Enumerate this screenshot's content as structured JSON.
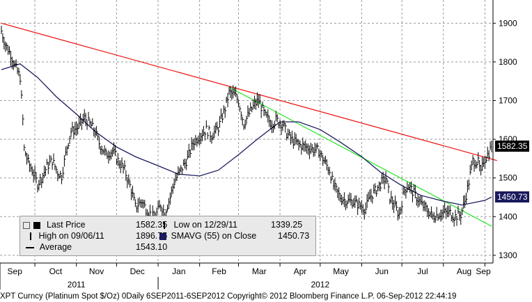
{
  "chart_data": {
    "type": "line",
    "title": "",
    "ylim": [
      1280,
      1960
    ],
    "y_ticks": [
      1300,
      1400,
      1500,
      1600,
      1700,
      1800,
      1900
    ],
    "x_ticks": [
      {
        "date": "2011-09-01",
        "label": "Sep"
      },
      {
        "date": "2011-10-01",
        "label": "Oct"
      },
      {
        "date": "2011-11-01",
        "label": "Nov"
      },
      {
        "date": "2011-12-01",
        "label": "Dec"
      },
      {
        "date": "2012-01-01",
        "label": "Jan"
      },
      {
        "date": "2012-02-01",
        "label": "Feb"
      },
      {
        "date": "2012-03-01",
        "label": "Mar"
      },
      {
        "date": "2012-04-01",
        "label": "Apr"
      },
      {
        "date": "2012-05-01",
        "label": "May"
      },
      {
        "date": "2012-06-01",
        "label": "Jun"
      },
      {
        "date": "2012-07-01",
        "label": "Jul"
      },
      {
        "date": "2012-08-01",
        "label": "Aug"
      },
      {
        "date": "2012-09-01",
        "label": "Sep"
      }
    ],
    "years": [
      {
        "label": "2011",
        "date": "2011-11-01"
      },
      {
        "label": "2012",
        "date": "2012-05-01"
      }
    ],
    "x_range": [
      "2011-09-06",
      "2012-09-06"
    ],
    "grid": true,
    "price_series": [
      {
        "x": "2011-09-06",
        "y": 1880
      },
      {
        "x": "2011-09-09",
        "y": 1845
      },
      {
        "x": "2011-09-13",
        "y": 1820
      },
      {
        "x": "2011-09-16",
        "y": 1790
      },
      {
        "x": "2011-09-20",
        "y": 1760
      },
      {
        "x": "2011-09-22",
        "y": 1650
      },
      {
        "x": "2011-09-23",
        "y": 1575
      },
      {
        "x": "2011-09-26",
        "y": 1540
      },
      {
        "x": "2011-09-29",
        "y": 1520
      },
      {
        "x": "2011-10-03",
        "y": 1485
      },
      {
        "x": "2011-10-06",
        "y": 1500
      },
      {
        "x": "2011-10-10",
        "y": 1530
      },
      {
        "x": "2011-10-14",
        "y": 1545
      },
      {
        "x": "2011-10-18",
        "y": 1515
      },
      {
        "x": "2011-10-21",
        "y": 1505
      },
      {
        "x": "2011-10-25",
        "y": 1580
      },
      {
        "x": "2011-10-28",
        "y": 1620
      },
      {
        "x": "2011-11-02",
        "y": 1630
      },
      {
        "x": "2011-11-07",
        "y": 1655
      },
      {
        "x": "2011-11-11",
        "y": 1640
      },
      {
        "x": "2011-11-15",
        "y": 1620
      },
      {
        "x": "2011-11-18",
        "y": 1590
      },
      {
        "x": "2011-11-23",
        "y": 1560
      },
      {
        "x": "2011-11-28",
        "y": 1570
      },
      {
        "x": "2011-12-02",
        "y": 1545
      },
      {
        "x": "2011-12-07",
        "y": 1520
      },
      {
        "x": "2011-12-12",
        "y": 1470
      },
      {
        "x": "2011-12-15",
        "y": 1425
      },
      {
        "x": "2011-12-20",
        "y": 1440
      },
      {
        "x": "2011-12-23",
        "y": 1420
      },
      {
        "x": "2011-12-29",
        "y": 1395
      },
      {
        "x": "2012-01-03",
        "y": 1430
      },
      {
        "x": "2012-01-06",
        "y": 1410
      },
      {
        "x": "2012-01-10",
        "y": 1450
      },
      {
        "x": "2012-01-13",
        "y": 1490
      },
      {
        "x": "2012-01-18",
        "y": 1520
      },
      {
        "x": "2012-01-23",
        "y": 1550
      },
      {
        "x": "2012-01-27",
        "y": 1590
      },
      {
        "x": "2012-02-01",
        "y": 1610
      },
      {
        "x": "2012-02-06",
        "y": 1625
      },
      {
        "x": "2012-02-10",
        "y": 1610
      },
      {
        "x": "2012-02-15",
        "y": 1630
      },
      {
        "x": "2012-02-20",
        "y": 1680
      },
      {
        "x": "2012-02-23",
        "y": 1720
      },
      {
        "x": "2012-02-27",
        "y": 1715
      },
      {
        "x": "2012-03-01",
        "y": 1700
      },
      {
        "x": "2012-03-05",
        "y": 1640
      },
      {
        "x": "2012-03-08",
        "y": 1660
      },
      {
        "x": "2012-03-13",
        "y": 1690
      },
      {
        "x": "2012-03-16",
        "y": 1700
      },
      {
        "x": "2012-03-21",
        "y": 1660
      },
      {
        "x": "2012-03-26",
        "y": 1640
      },
      {
        "x": "2012-03-29",
        "y": 1650
      },
      {
        "x": "2012-04-03",
        "y": 1640
      },
      {
        "x": "2012-04-06",
        "y": 1615
      },
      {
        "x": "2012-04-11",
        "y": 1595
      },
      {
        "x": "2012-04-16",
        "y": 1585
      },
      {
        "x": "2012-04-20",
        "y": 1580
      },
      {
        "x": "2012-04-25",
        "y": 1575
      },
      {
        "x": "2012-04-30",
        "y": 1570
      },
      {
        "x": "2012-05-03",
        "y": 1550
      },
      {
        "x": "2012-05-08",
        "y": 1520
      },
      {
        "x": "2012-05-11",
        "y": 1480
      },
      {
        "x": "2012-05-16",
        "y": 1450
      },
      {
        "x": "2012-05-21",
        "y": 1440
      },
      {
        "x": "2012-05-25",
        "y": 1440
      },
      {
        "x": "2012-05-30",
        "y": 1430
      },
      {
        "x": "2012-06-04",
        "y": 1420
      },
      {
        "x": "2012-06-07",
        "y": 1450
      },
      {
        "x": "2012-06-12",
        "y": 1470
      },
      {
        "x": "2012-06-15",
        "y": 1485
      },
      {
        "x": "2012-06-19",
        "y": 1500
      },
      {
        "x": "2012-06-22",
        "y": 1450
      },
      {
        "x": "2012-06-26",
        "y": 1425
      },
      {
        "x": "2012-06-29",
        "y": 1405
      },
      {
        "x": "2012-07-03",
        "y": 1470
      },
      {
        "x": "2012-07-06",
        "y": 1480
      },
      {
        "x": "2012-07-11",
        "y": 1455
      },
      {
        "x": "2012-07-16",
        "y": 1430
      },
      {
        "x": "2012-07-19",
        "y": 1420
      },
      {
        "x": "2012-07-24",
        "y": 1400
      },
      {
        "x": "2012-07-27",
        "y": 1405
      },
      {
        "x": "2012-08-01",
        "y": 1410
      },
      {
        "x": "2012-08-06",
        "y": 1410
      },
      {
        "x": "2012-08-09",
        "y": 1400
      },
      {
        "x": "2012-08-14",
        "y": 1405
      },
      {
        "x": "2012-08-17",
        "y": 1440
      },
      {
        "x": "2012-08-20",
        "y": 1490
      },
      {
        "x": "2012-08-23",
        "y": 1545
      },
      {
        "x": "2012-08-27",
        "y": 1540
      },
      {
        "x": "2012-08-29",
        "y": 1510
      },
      {
        "x": "2012-08-31",
        "y": 1545
      },
      {
        "x": "2012-09-04",
        "y": 1565
      },
      {
        "x": "2012-09-06",
        "y": 1582.35
      }
    ],
    "sma_series": [
      {
        "x": "2011-09-06",
        "y": 1780
      },
      {
        "x": "2011-09-20",
        "y": 1795
      },
      {
        "x": "2011-10-03",
        "y": 1760
      },
      {
        "x": "2011-10-17",
        "y": 1710
      },
      {
        "x": "2011-11-01",
        "y": 1665
      },
      {
        "x": "2011-11-15",
        "y": 1620
      },
      {
        "x": "2011-12-01",
        "y": 1580
      },
      {
        "x": "2011-12-15",
        "y": 1555
      },
      {
        "x": "2012-01-02",
        "y": 1530
      },
      {
        "x": "2012-01-16",
        "y": 1510
      },
      {
        "x": "2012-02-01",
        "y": 1505
      },
      {
        "x": "2012-02-15",
        "y": 1520
      },
      {
        "x": "2012-03-01",
        "y": 1560
      },
      {
        "x": "2012-03-15",
        "y": 1600
      },
      {
        "x": "2012-04-01",
        "y": 1645
      },
      {
        "x": "2012-04-15",
        "y": 1645
      },
      {
        "x": "2012-05-01",
        "y": 1625
      },
      {
        "x": "2012-05-15",
        "y": 1595
      },
      {
        "x": "2012-06-01",
        "y": 1555
      },
      {
        "x": "2012-06-15",
        "y": 1515
      },
      {
        "x": "2012-07-01",
        "y": 1480
      },
      {
        "x": "2012-07-15",
        "y": 1455
      },
      {
        "x": "2012-08-01",
        "y": 1440
      },
      {
        "x": "2012-08-15",
        "y": 1430
      },
      {
        "x": "2012-09-01",
        "y": 1442
      },
      {
        "x": "2012-09-06",
        "y": 1450.73
      }
    ],
    "trendlines": [
      {
        "color": "#ee1c1c",
        "from": {
          "x": "2011-09-06",
          "y": 1900
        },
        "to": {
          "x": "2012-09-10",
          "y": 1545
        }
      },
      {
        "color": "#32e632",
        "from": {
          "x": "2012-02-23",
          "y": 1735
        },
        "to": {
          "x": "2012-09-06",
          "y": 1375
        }
      }
    ],
    "last_price_badge": "1582.35",
    "sma_badge": "1450.73",
    "colors": {
      "price": "#000000",
      "sma": "#1a1a5e",
      "badge_price": "#000000",
      "badge_sma": "#1a1a5e",
      "grid": "#9a9a9a"
    }
  },
  "legend": {
    "last_price_label": "Last Price",
    "last_price_value": "1582.35",
    "high_label": "High on 09/06/11",
    "high_value": "1896.75",
    "average_label": "Average",
    "average_value": "1543.10",
    "low_label": "Low on 12/29/11",
    "low_value": "1339.25",
    "smavg_label": "SMAVG (55) on Close",
    "smavg_value": "1450.73"
  },
  "footer": {
    "text": "XPT Curncy (Platinum Spot  $/Oz) 0Daily 6SEP2011-6SEP2012  Copyright© 2012 Bloomberg Finance L.P.   06-Sep-2012 22:44:19"
  }
}
